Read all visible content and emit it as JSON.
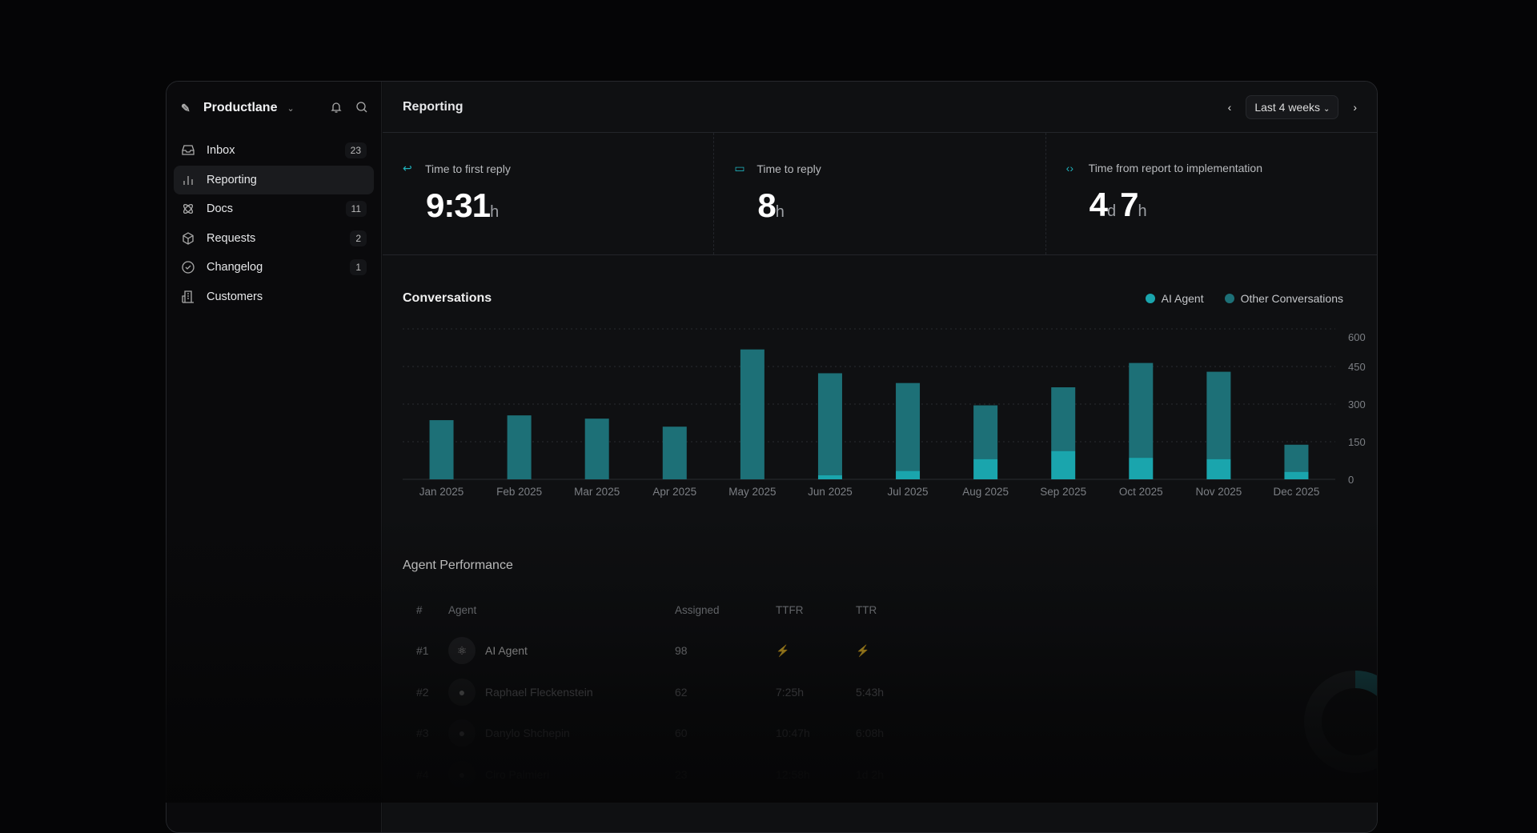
{
  "sidebar": {
    "workspace": "Productlane",
    "items": [
      {
        "label": "Inbox",
        "count": "23",
        "icon": "inbox-icon"
      },
      {
        "label": "Reporting",
        "count": "",
        "icon": "bar-chart-icon"
      },
      {
        "label": "Docs",
        "count": "11",
        "icon": "atom-icon"
      },
      {
        "label": "Requests",
        "count": "2",
        "icon": "cube-icon"
      },
      {
        "label": "Changelog",
        "count": "1",
        "icon": "check-circle-icon"
      },
      {
        "label": "Customers",
        "count": "",
        "icon": "building-icon"
      }
    ]
  },
  "header": {
    "title": "Reporting",
    "range": "Last 4 weeks"
  },
  "metrics": [
    {
      "label": "Time to first reply",
      "value": "9:31",
      "unit": "h",
      "icon": "reply-icon"
    },
    {
      "label": "Time to reply",
      "value": "8",
      "unit": "h",
      "icon": "message-icon"
    },
    {
      "label": "Time from report to implementation",
      "value": "4",
      "unit": "d",
      "value2": "7",
      "unit2": "h",
      "icon": "code-icon"
    }
  ],
  "chart_data": {
    "type": "bar",
    "stacked": true,
    "title": "Conversations",
    "categories": [
      "Jan 2025",
      "Feb 2025",
      "Mar 2025",
      "Apr 2025",
      "May 2025",
      "Jun 2025",
      "Jul 2025",
      "Aug 2025",
      "Sep 2025",
      "Oct 2025",
      "Nov 2025",
      "Dec 2025"
    ],
    "series": [
      {
        "name": "AI Agent",
        "color": "#1aa5ad",
        "values": [
          0,
          0,
          0,
          0,
          0,
          17,
          34,
          81,
          113,
          86,
          81,
          30
        ]
      },
      {
        "name": "Other Conversations",
        "color": "#1d7077",
        "values": [
          236,
          255,
          242,
          210,
          518,
          406,
          350,
          214,
          254,
          378,
          348,
          108
        ]
      }
    ],
    "yticks": [
      0,
      150,
      300,
      450,
      600
    ],
    "ylim": [
      0,
      600
    ],
    "grid": true,
    "legend": "top-right"
  },
  "agents": {
    "title": "Agent Performance",
    "columns": [
      "#",
      "Agent",
      "Assigned",
      "TTFR",
      "TTR"
    ],
    "rows": [
      {
        "rank": "#1",
        "name": "AI Agent",
        "assigned": "98",
        "ttfr": "⚡",
        "ttr": "⚡"
      },
      {
        "rank": "#2",
        "name": "Raphael Fleckenstein",
        "assigned": "62",
        "ttfr": "7:25h",
        "ttr": "5:43h"
      },
      {
        "rank": "#3",
        "name": "Danylo Shchepin",
        "assigned": "60",
        "ttfr": "10:47h",
        "ttr": "6:08h"
      },
      {
        "rank": "#4",
        "name": "Ciro Palmieri",
        "assigned": "23",
        "ttfr": "12:58h",
        "ttr": "1d 2h"
      }
    ]
  }
}
